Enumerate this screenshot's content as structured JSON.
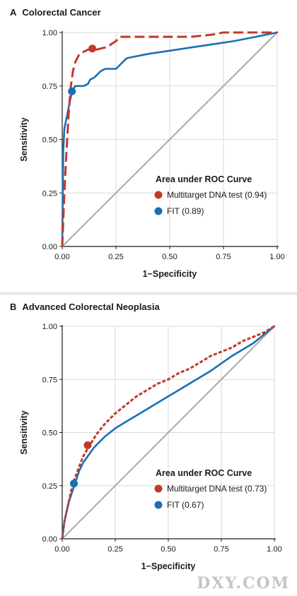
{
  "colors": {
    "dna": "#c0392b",
    "fit": "#1a6fb4",
    "reference": "#a9a9a9",
    "grid": "#d9d9d9"
  },
  "watermark": "DXY.COM",
  "chart_data": [
    {
      "type": "line",
      "panel": "A",
      "title": "Colorectal Cancer",
      "xlabel": "1−Specificity",
      "ylabel": "Sensitivity",
      "xlim": [
        0,
        1
      ],
      "ylim": [
        0,
        1
      ],
      "x_ticks": [
        "0.00",
        "0.25",
        "0.50",
        "0.75",
        "1.00"
      ],
      "y_ticks": [
        "0.00",
        "0.25",
        "0.50",
        "0.75",
        "1.00"
      ],
      "grid": true,
      "legend_title": "Area under ROC Curve",
      "legend_position": "bottom-right",
      "series": [
        {
          "name": "Multitarget DNA test (0.94)",
          "style": "dashed",
          "color": "#c0392b",
          "x": [
            0,
            0.01,
            0.02,
            0.03,
            0.04,
            0.05,
            0.06,
            0.07,
            0.08,
            0.1,
            0.12,
            0.14,
            0.16,
            0.2,
            0.22,
            0.25,
            0.27,
            0.3,
            0.4,
            0.5,
            0.6,
            0.7,
            0.75,
            0.8,
            0.9,
            1.0
          ],
          "y": [
            0,
            0.25,
            0.45,
            0.62,
            0.75,
            0.82,
            0.86,
            0.88,
            0.9,
            0.91,
            0.92,
            0.92,
            0.92,
            0.93,
            0.94,
            0.96,
            0.98,
            0.98,
            0.98,
            0.98,
            0.98,
            0.99,
            1.0,
            1.0,
            1.0,
            1.0
          ]
        },
        {
          "name": "FIT (0.89)",
          "style": "solid",
          "color": "#1a6fb4",
          "x": [
            0,
            0.005,
            0.01,
            0.02,
            0.03,
            0.04,
            0.05,
            0.06,
            0.08,
            0.1,
            0.12,
            0.13,
            0.15,
            0.16,
            0.18,
            0.2,
            0.25,
            0.28,
            0.3,
            0.4,
            0.5,
            0.6,
            0.7,
            0.8,
            0.9,
            1.0
          ],
          "y": [
            0,
            0.45,
            0.55,
            0.6,
            0.65,
            0.7,
            0.73,
            0.75,
            0.75,
            0.75,
            0.76,
            0.78,
            0.79,
            0.8,
            0.82,
            0.83,
            0.83,
            0.86,
            0.88,
            0.9,
            0.915,
            0.93,
            0.945,
            0.96,
            0.98,
            1.0
          ]
        },
        {
          "name": "Chance",
          "style": "solid",
          "color": "#a9a9a9",
          "x": [
            0,
            1
          ],
          "y": [
            0,
            1
          ]
        }
      ],
      "points": [
        {
          "series": "Multitarget DNA test (0.94)",
          "x": 0.14,
          "y": 0.925
        },
        {
          "series": "FIT (0.89)",
          "x": 0.045,
          "y": 0.725
        }
      ]
    },
    {
      "type": "line",
      "panel": "B",
      "title": "Advanced Colorectal Neoplasia",
      "xlabel": "1−Specificity",
      "ylabel": "Sensitivity",
      "xlim": [
        0,
        1
      ],
      "ylim": [
        0,
        1
      ],
      "x_ticks": [
        "0.00",
        "0.25",
        "0.50",
        "0.75",
        "1.00"
      ],
      "y_ticks": [
        "0.00",
        "0.25",
        "0.50",
        "0.75",
        "1.00"
      ],
      "grid": true,
      "legend_title": "Area under ROC Curve",
      "legend_position": "bottom-right",
      "series": [
        {
          "name": "Multitarget DNA test (0.73)",
          "style": "dotted",
          "color": "#c0392b",
          "x": [
            0,
            0.01,
            0.03,
            0.05,
            0.08,
            0.1,
            0.13,
            0.16,
            0.2,
            0.25,
            0.3,
            0.35,
            0.4,
            0.45,
            0.5,
            0.55,
            0.6,
            0.65,
            0.7,
            0.75,
            0.8,
            0.85,
            0.9,
            0.95,
            1.0
          ],
          "y": [
            0,
            0.08,
            0.17,
            0.26,
            0.34,
            0.39,
            0.44,
            0.49,
            0.54,
            0.59,
            0.63,
            0.67,
            0.7,
            0.73,
            0.75,
            0.78,
            0.8,
            0.83,
            0.86,
            0.88,
            0.9,
            0.93,
            0.95,
            0.97,
            1.0
          ]
        },
        {
          "name": "FIT (0.67)",
          "style": "solid",
          "color": "#1a6fb4",
          "x": [
            0,
            0.01,
            0.03,
            0.06,
            0.08,
            0.1,
            0.15,
            0.2,
            0.25,
            0.3,
            0.4,
            0.5,
            0.6,
            0.7,
            0.8,
            0.9,
            0.95,
            1.0
          ],
          "y": [
            0,
            0.08,
            0.17,
            0.26,
            0.32,
            0.36,
            0.43,
            0.48,
            0.52,
            0.55,
            0.61,
            0.67,
            0.73,
            0.79,
            0.86,
            0.92,
            0.96,
            1.0
          ]
        },
        {
          "name": "Chance",
          "style": "solid",
          "color": "#a9a9a9",
          "x": [
            0,
            1
          ],
          "y": [
            0,
            1
          ]
        }
      ],
      "points": [
        {
          "series": "Multitarget DNA test (0.73)",
          "x": 0.12,
          "y": 0.44
        },
        {
          "series": "FIT (0.67)",
          "x": 0.055,
          "y": 0.26
        }
      ]
    }
  ]
}
